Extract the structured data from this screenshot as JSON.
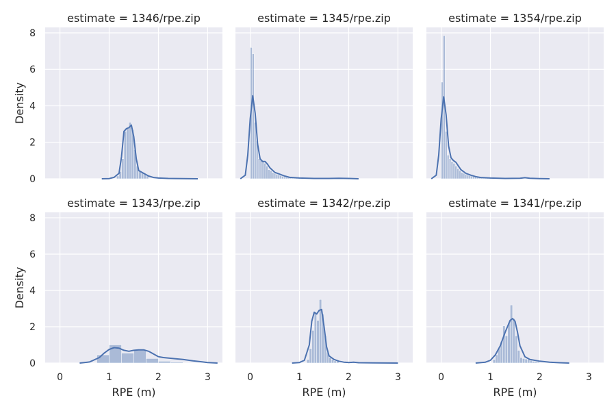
{
  "chart_data": {
    "type": "histogram-kde-facet-grid",
    "xlabel": "RPE (m)",
    "ylabel": "Density",
    "xlim": [
      -0.3,
      3.3
    ],
    "ylim": [
      0,
      8.3
    ],
    "xticks": [
      0,
      1,
      2,
      3
    ],
    "yticks": [
      0,
      2,
      4,
      6,
      8
    ],
    "grid": true,
    "colors": {
      "background": "#eaeaf2",
      "grid": "#ffffff",
      "series": "#4c72b0"
    },
    "panels": [
      {
        "title": "estimate = 1346/rpe.zip",
        "hist": [
          [
            1.15,
            1.2,
            0.15
          ],
          [
            1.2,
            1.25,
            0.4
          ],
          [
            1.25,
            1.3,
            1.1
          ],
          [
            1.3,
            1.35,
            2.6
          ],
          [
            1.35,
            1.4,
            2.75
          ],
          [
            1.4,
            1.45,
            3.1
          ],
          [
            1.45,
            1.5,
            2.7
          ],
          [
            1.5,
            1.55,
            1.6
          ],
          [
            1.55,
            1.6,
            0.7
          ],
          [
            1.6,
            1.65,
            0.4
          ],
          [
            1.65,
            1.7,
            0.35
          ],
          [
            1.7,
            1.75,
            0.25
          ],
          [
            1.75,
            1.8,
            0.15
          ]
        ],
        "kde": [
          [
            0.85,
            0
          ],
          [
            1.0,
            0.01
          ],
          [
            1.1,
            0.08
          ],
          [
            1.2,
            0.3
          ],
          [
            1.25,
            1.2
          ],
          [
            1.3,
            2.6
          ],
          [
            1.35,
            2.75
          ],
          [
            1.4,
            2.8
          ],
          [
            1.45,
            2.95
          ],
          [
            1.5,
            2.3
          ],
          [
            1.55,
            1.1
          ],
          [
            1.6,
            0.45
          ],
          [
            1.7,
            0.3
          ],
          [
            1.8,
            0.15
          ],
          [
            1.9,
            0.07
          ],
          [
            2.0,
            0.04
          ],
          [
            2.2,
            0.02
          ],
          [
            2.5,
            0.01
          ],
          [
            2.8,
            0
          ]
        ]
      },
      {
        "title": "estimate = 1345/rpe.zip",
        "hist": [
          [
            0.0,
            0.04,
            7.2
          ],
          [
            0.04,
            0.08,
            6.85
          ],
          [
            0.08,
            0.12,
            3.1
          ],
          [
            0.12,
            0.16,
            2.1
          ],
          [
            0.16,
            0.2,
            1.1
          ],
          [
            0.2,
            0.24,
            1.05
          ],
          [
            0.24,
            0.28,
            0.95
          ],
          [
            0.28,
            0.32,
            0.85
          ],
          [
            0.32,
            0.36,
            0.7
          ],
          [
            0.36,
            0.4,
            0.5
          ],
          [
            0.4,
            0.44,
            0.45
          ],
          [
            0.44,
            0.48,
            0.35
          ],
          [
            0.48,
            0.52,
            0.3
          ],
          [
            0.52,
            0.56,
            0.25
          ],
          [
            0.56,
            0.6,
            0.22
          ],
          [
            0.6,
            0.64,
            0.18
          ],
          [
            0.64,
            0.68,
            0.14
          ],
          [
            0.68,
            0.72,
            0.1
          ],
          [
            0.72,
            0.76,
            0.08
          ],
          [
            0.76,
            0.8,
            0.06
          ],
          [
            0.8,
            0.84,
            0.05
          ],
          [
            0.84,
            0.88,
            0.04
          ],
          [
            0.88,
            0.92,
            0.03
          ],
          [
            0.92,
            0.96,
            0.03
          ],
          [
            0.96,
            1.0,
            0.02
          ]
        ],
        "kde": [
          [
            -0.2,
            0
          ],
          [
            -0.1,
            0.2
          ],
          [
            -0.05,
            1.3
          ],
          [
            0.0,
            3.3
          ],
          [
            0.05,
            4.55
          ],
          [
            0.1,
            3.6
          ],
          [
            0.15,
            1.9
          ],
          [
            0.2,
            1.1
          ],
          [
            0.25,
            0.95
          ],
          [
            0.3,
            0.95
          ],
          [
            0.35,
            0.8
          ],
          [
            0.4,
            0.6
          ],
          [
            0.5,
            0.35
          ],
          [
            0.6,
            0.25
          ],
          [
            0.7,
            0.15
          ],
          [
            0.8,
            0.08
          ],
          [
            1.0,
            0.04
          ],
          [
            1.3,
            0.02
          ],
          [
            1.6,
            0.02
          ],
          [
            1.8,
            0.03
          ],
          [
            2.0,
            0.02
          ],
          [
            2.2,
            0
          ]
        ]
      },
      {
        "title": "estimate = 1354/rpe.zip",
        "hist": [
          [
            0.0,
            0.04,
            5.3
          ],
          [
            0.04,
            0.08,
            7.85
          ],
          [
            0.08,
            0.12,
            2.6
          ],
          [
            0.12,
            0.16,
            1.3
          ],
          [
            0.16,
            0.2,
            1.1
          ],
          [
            0.2,
            0.24,
            0.95
          ],
          [
            0.24,
            0.28,
            0.85
          ],
          [
            0.28,
            0.32,
            0.7
          ],
          [
            0.32,
            0.36,
            0.55
          ],
          [
            0.36,
            0.4,
            0.45
          ],
          [
            0.4,
            0.44,
            0.35
          ],
          [
            0.44,
            0.48,
            0.3
          ],
          [
            0.48,
            0.52,
            0.25
          ],
          [
            0.52,
            0.56,
            0.2
          ],
          [
            0.56,
            0.6,
            0.18
          ],
          [
            0.6,
            0.64,
            0.15
          ],
          [
            0.64,
            0.68,
            0.12
          ],
          [
            0.68,
            0.72,
            0.1
          ],
          [
            0.72,
            0.76,
            0.08
          ],
          [
            0.76,
            0.8,
            0.06
          ],
          [
            0.8,
            0.84,
            0.05
          ],
          [
            0.84,
            0.88,
            0.04
          ],
          [
            0.88,
            0.92,
            0.03
          ],
          [
            0.92,
            0.96,
            0.03
          ],
          [
            0.96,
            1.0,
            0.02
          ]
        ],
        "kde": [
          [
            -0.2,
            0
          ],
          [
            -0.1,
            0.2
          ],
          [
            -0.05,
            1.3
          ],
          [
            0.0,
            3.3
          ],
          [
            0.05,
            4.5
          ],
          [
            0.1,
            3.5
          ],
          [
            0.15,
            1.8
          ],
          [
            0.2,
            1.15
          ],
          [
            0.25,
            1.0
          ],
          [
            0.3,
            0.9
          ],
          [
            0.35,
            0.7
          ],
          [
            0.4,
            0.5
          ],
          [
            0.5,
            0.3
          ],
          [
            0.6,
            0.2
          ],
          [
            0.7,
            0.12
          ],
          [
            0.8,
            0.07
          ],
          [
            1.0,
            0.04
          ],
          [
            1.3,
            0.02
          ],
          [
            1.6,
            0.03
          ],
          [
            1.7,
            0.06
          ],
          [
            1.8,
            0.03
          ],
          [
            2.0,
            0.01
          ],
          [
            2.2,
            0
          ]
        ]
      },
      {
        "title": "estimate = 1343/rpe.zip",
        "hist": [
          [
            0.75,
            1.0,
            0.45
          ],
          [
            1.0,
            1.25,
            1.0
          ],
          [
            1.25,
            1.5,
            0.55
          ],
          [
            1.5,
            1.75,
            0.75
          ],
          [
            1.75,
            2.0,
            0.25
          ],
          [
            2.0,
            2.25,
            0.1
          ],
          [
            2.25,
            2.5,
            0.05
          ]
        ],
        "kde": [
          [
            0.4,
            0
          ],
          [
            0.6,
            0.06
          ],
          [
            0.8,
            0.3
          ],
          [
            0.9,
            0.55
          ],
          [
            1.0,
            0.75
          ],
          [
            1.1,
            0.85
          ],
          [
            1.2,
            0.82
          ],
          [
            1.3,
            0.7
          ],
          [
            1.4,
            0.65
          ],
          [
            1.5,
            0.7
          ],
          [
            1.6,
            0.73
          ],
          [
            1.7,
            0.73
          ],
          [
            1.8,
            0.65
          ],
          [
            1.9,
            0.5
          ],
          [
            2.0,
            0.35
          ],
          [
            2.1,
            0.3
          ],
          [
            2.3,
            0.25
          ],
          [
            2.5,
            0.2
          ],
          [
            2.7,
            0.12
          ],
          [
            2.9,
            0.06
          ],
          [
            3.0,
            0.03
          ],
          [
            3.2,
            0
          ]
        ]
      },
      {
        "title": "estimate = 1342/rpe.zip",
        "hist": [
          [
            1.15,
            1.2,
            0.2
          ],
          [
            1.2,
            1.25,
            0.8
          ],
          [
            1.25,
            1.3,
            1.8
          ],
          [
            1.3,
            1.35,
            2.8
          ],
          [
            1.35,
            1.4,
            2.35
          ],
          [
            1.4,
            1.45,
            3.5
          ],
          [
            1.45,
            1.5,
            2.7
          ],
          [
            1.5,
            1.55,
            1.5
          ],
          [
            1.55,
            1.6,
            0.6
          ],
          [
            1.6,
            1.65,
            0.3
          ],
          [
            1.65,
            1.7,
            0.2
          ],
          [
            1.7,
            1.75,
            0.12
          ],
          [
            1.75,
            1.8,
            0.1
          ]
        ],
        "kde": [
          [
            0.85,
            0
          ],
          [
            1.0,
            0.03
          ],
          [
            1.1,
            0.15
          ],
          [
            1.2,
            1.0
          ],
          [
            1.25,
            2.3
          ],
          [
            1.3,
            2.8
          ],
          [
            1.35,
            2.7
          ],
          [
            1.4,
            2.9
          ],
          [
            1.45,
            2.95
          ],
          [
            1.5,
            2.0
          ],
          [
            1.55,
            0.9
          ],
          [
            1.6,
            0.4
          ],
          [
            1.7,
            0.2
          ],
          [
            1.8,
            0.1
          ],
          [
            1.9,
            0.05
          ],
          [
            2.0,
            0.03
          ],
          [
            2.1,
            0.05
          ],
          [
            2.2,
            0.02
          ],
          [
            2.5,
            0.01
          ],
          [
            3.0,
            0
          ]
        ]
      },
      {
        "title": "estimate = 1341/rpe.zip",
        "hist": [
          [
            1.05,
            1.1,
            0.2
          ],
          [
            1.1,
            1.15,
            0.45
          ],
          [
            1.15,
            1.2,
            0.8
          ],
          [
            1.2,
            1.25,
            1.2
          ],
          [
            1.25,
            1.3,
            2.05
          ],
          [
            1.3,
            1.35,
            1.5
          ],
          [
            1.35,
            1.4,
            2.2
          ],
          [
            1.4,
            1.45,
            3.2
          ],
          [
            1.45,
            1.5,
            2.45
          ],
          [
            1.5,
            1.55,
            1.5
          ],
          [
            1.55,
            1.6,
            0.7
          ],
          [
            1.6,
            1.65,
            0.3
          ],
          [
            1.65,
            1.7,
            0.25
          ],
          [
            1.7,
            1.75,
            0.22
          ],
          [
            1.75,
            1.8,
            0.2
          ],
          [
            1.8,
            1.85,
            0.15
          ],
          [
            1.85,
            1.9,
            0.1
          ],
          [
            1.9,
            1.95,
            0.08
          ],
          [
            1.95,
            2.0,
            0.05
          ]
        ],
        "kde": [
          [
            0.7,
            0
          ],
          [
            0.9,
            0.05
          ],
          [
            1.0,
            0.15
          ],
          [
            1.1,
            0.45
          ],
          [
            1.2,
            0.95
          ],
          [
            1.3,
            1.7
          ],
          [
            1.4,
            2.35
          ],
          [
            1.45,
            2.45
          ],
          [
            1.5,
            2.3
          ],
          [
            1.55,
            1.7
          ],
          [
            1.6,
            0.95
          ],
          [
            1.7,
            0.35
          ],
          [
            1.8,
            0.2
          ],
          [
            1.9,
            0.15
          ],
          [
            2.0,
            0.1
          ],
          [
            2.2,
            0.05
          ],
          [
            2.4,
            0.02
          ],
          [
            2.6,
            0
          ]
        ]
      }
    ]
  }
}
